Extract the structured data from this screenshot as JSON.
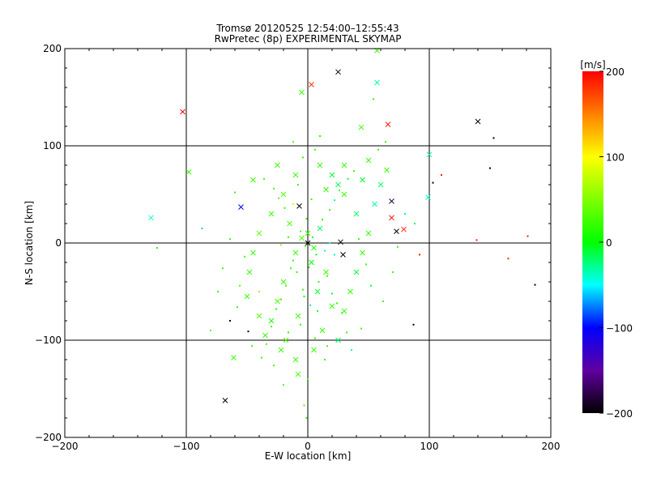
{
  "chart_data": {
    "type": "scatter",
    "title": "Tromsø 20120525 12:54:00–12:55:43",
    "subtitle": "RwPretec (8p) EXPERIMENTAL SKYMAP",
    "xlabel": "E-W location [km]",
    "ylabel": "N-S location [km]",
    "xlim": [
      -200,
      200
    ],
    "ylim": [
      -200,
      200
    ],
    "xticks": [
      "−200",
      "−100",
      "0",
      "100",
      "200"
    ],
    "yticks": [
      "−200",
      "−100",
      "0",
      "100",
      "200"
    ],
    "grid": true,
    "colorbar": {
      "label": "[m/s]",
      "range": [
        -200,
        200
      ],
      "ticks": [
        "200",
        "100",
        "0",
        "−100",
        "−200"
      ],
      "position": "right"
    },
    "points_format": [
      "x_km",
      "y_km",
      "velocity_ms",
      "marker"
    ],
    "points": [
      [
        -103,
        135,
        200,
        "x"
      ],
      [
        3,
        163,
        180,
        "x"
      ],
      [
        25,
        176,
        -200,
        "x"
      ],
      [
        57,
        165,
        -30,
        "x"
      ],
      [
        66,
        122,
        190,
        "x"
      ],
      [
        140,
        125,
        -200,
        "x"
      ],
      [
        153,
        108,
        -200,
        "d"
      ],
      [
        150,
        77,
        -200,
        "d"
      ],
      [
        110,
        70,
        190,
        "d"
      ],
      [
        69,
        43,
        -180,
        "x"
      ],
      [
        69,
        26,
        200,
        "x"
      ],
      [
        79,
        14,
        190,
        "x"
      ],
      [
        73,
        12,
        -200,
        "x"
      ],
      [
        99,
        47,
        -40,
        "x"
      ],
      [
        100,
        91,
        -30,
        "x"
      ],
      [
        103,
        62,
        -200,
        "d"
      ],
      [
        -129,
        26,
        -40,
        "x"
      ],
      [
        -98,
        73,
        20,
        "x"
      ],
      [
        -55,
        37,
        -100,
        "x"
      ],
      [
        -87,
        15,
        -60,
        "d"
      ],
      [
        -124,
        -5,
        10,
        "d"
      ],
      [
        139,
        3,
        190,
        "d"
      ],
      [
        165,
        -16,
        190,
        "d"
      ],
      [
        181,
        7,
        190,
        "d"
      ],
      [
        187,
        -43,
        -200,
        "d"
      ],
      [
        92,
        -12,
        190,
        "d"
      ],
      [
        87,
        -84,
        -200,
        "d"
      ],
      [
        -68,
        -162,
        -200,
        "x"
      ],
      [
        -61,
        -118,
        20,
        "x"
      ],
      [
        -64,
        -80,
        -200,
        "d"
      ],
      [
        -49,
        -91,
        -200,
        "d"
      ],
      [
        29,
        -12,
        -200,
        "x"
      ],
      [
        27,
        1,
        -200,
        "x"
      ],
      [
        -7,
        38,
        -200,
        "x"
      ],
      [
        0,
        0,
        -200,
        "x"
      ],
      [
        57,
        198,
        20,
        "x"
      ],
      [
        -5,
        155,
        20,
        "x"
      ],
      [
        44,
        119,
        20,
        "x"
      ],
      [
        -1,
        -180,
        20,
        "d"
      ],
      [
        -3,
        -167,
        30,
        "d"
      ],
      [
        0,
        10,
        20,
        "x"
      ],
      [
        -5,
        5,
        30,
        "x"
      ],
      [
        5,
        -5,
        10,
        "x"
      ],
      [
        10,
        15,
        -20,
        "x"
      ],
      [
        -10,
        -10,
        20,
        "x"
      ],
      [
        3,
        -20,
        0,
        "x"
      ],
      [
        -15,
        20,
        30,
        "x"
      ],
      [
        15,
        -30,
        20,
        "x"
      ],
      [
        -20,
        -40,
        20,
        "x"
      ],
      [
        8,
        -50,
        -10,
        "x"
      ],
      [
        -25,
        -60,
        30,
        "x"
      ],
      [
        20,
        -65,
        20,
        "x"
      ],
      [
        -8,
        -75,
        20,
        "x"
      ],
      [
        -30,
        -80,
        10,
        "x"
      ],
      [
        12,
        -90,
        20,
        "x"
      ],
      [
        -18,
        -100,
        30,
        "x"
      ],
      [
        -22,
        -110,
        20,
        "x"
      ],
      [
        -10,
        -120,
        20,
        "x"
      ],
      [
        -8,
        -135,
        30,
        "x"
      ],
      [
        5,
        -110,
        20,
        "x"
      ],
      [
        25,
        -100,
        -20,
        "x"
      ],
      [
        30,
        -70,
        20,
        "x"
      ],
      [
        35,
        -50,
        20,
        "x"
      ],
      [
        40,
        -30,
        -10,
        "x"
      ],
      [
        45,
        -10,
        20,
        "x"
      ],
      [
        50,
        10,
        20,
        "x"
      ],
      [
        40,
        30,
        -20,
        "x"
      ],
      [
        30,
        50,
        20,
        "x"
      ],
      [
        20,
        70,
        -10,
        "x"
      ],
      [
        10,
        80,
        20,
        "x"
      ],
      [
        -10,
        70,
        20,
        "x"
      ],
      [
        -20,
        50,
        30,
        "x"
      ],
      [
        -30,
        30,
        20,
        "x"
      ],
      [
        -40,
        10,
        40,
        "x"
      ],
      [
        -45,
        -10,
        20,
        "x"
      ],
      [
        -48,
        -30,
        20,
        "x"
      ],
      [
        -50,
        -55,
        20,
        "x"
      ],
      [
        -40,
        -75,
        30,
        "x"
      ],
      [
        -35,
        -95,
        20,
        "x"
      ],
      [
        60,
        60,
        -20,
        "x"
      ],
      [
        65,
        75,
        20,
        "x"
      ],
      [
        55,
        40,
        -30,
        "x"
      ],
      [
        45,
        65,
        -10,
        "x"
      ],
      [
        30,
        80,
        20,
        "x"
      ],
      [
        25,
        60,
        -20,
        "x"
      ],
      [
        15,
        55,
        20,
        "x"
      ],
      [
        50,
        85,
        20,
        "x"
      ],
      [
        -45,
        65,
        20,
        "x"
      ],
      [
        -25,
        80,
        20,
        "x"
      ],
      [
        -2,
        -3,
        20,
        "d"
      ],
      [
        4,
        6,
        10,
        "d"
      ],
      [
        -6,
        12,
        30,
        "d"
      ],
      [
        7,
        -12,
        -10,
        "d"
      ],
      [
        -12,
        -18,
        20,
        "d"
      ],
      [
        12,
        24,
        10,
        "d"
      ],
      [
        -14,
        -26,
        20,
        "d"
      ],
      [
        16,
        -34,
        20,
        "d"
      ],
      [
        -18,
        -44,
        30,
        "d"
      ],
      [
        20,
        -52,
        -20,
        "d"
      ],
      [
        -22,
        -58,
        20,
        "d"
      ],
      [
        24,
        -62,
        20,
        "d"
      ],
      [
        -26,
        -68,
        10,
        "d"
      ],
      [
        28,
        -72,
        20,
        "d"
      ],
      [
        -30,
        -86,
        20,
        "d"
      ],
      [
        32,
        -92,
        20,
        "d"
      ],
      [
        -34,
        -104,
        30,
        "d"
      ],
      [
        6,
        -98,
        20,
        "d"
      ],
      [
        -6,
        -84,
        20,
        "d"
      ],
      [
        2,
        -64,
        -30,
        "d"
      ],
      [
        -4,
        -48,
        20,
        "d"
      ],
      [
        9,
        -40,
        20,
        "d"
      ],
      [
        -9,
        -30,
        20,
        "d"
      ],
      [
        14,
        -8,
        -30,
        "d"
      ],
      [
        -16,
        6,
        20,
        "d"
      ],
      [
        18,
        34,
        20,
        "d"
      ],
      [
        -19,
        36,
        20,
        "d"
      ],
      [
        22,
        44,
        -20,
        "d"
      ],
      [
        -24,
        46,
        30,
        "d"
      ],
      [
        26,
        54,
        20,
        "d"
      ],
      [
        -28,
        56,
        20,
        "d"
      ],
      [
        33,
        66,
        -10,
        "d"
      ],
      [
        -36,
        66,
        20,
        "d"
      ],
      [
        38,
        74,
        20,
        "d"
      ],
      [
        -4,
        88,
        20,
        "d"
      ],
      [
        6,
        96,
        20,
        "d"
      ],
      [
        10,
        110,
        20,
        "d"
      ],
      [
        -12,
        104,
        30,
        "d"
      ],
      [
        42,
        4,
        20,
        "d"
      ],
      [
        48,
        -22,
        20,
        "d"
      ],
      [
        52,
        -44,
        -20,
        "d"
      ],
      [
        -52,
        -14,
        20,
        "d"
      ],
      [
        -56,
        -44,
        30,
        "d"
      ],
      [
        -58,
        -66,
        20,
        "d"
      ],
      [
        -46,
        -106,
        20,
        "d"
      ],
      [
        -38,
        -118,
        20,
        "d"
      ],
      [
        -28,
        -126,
        20,
        "d"
      ],
      [
        14,
        -120,
        20,
        "d"
      ],
      [
        36,
        -110,
        -30,
        "d"
      ],
      [
        44,
        -88,
        20,
        "d"
      ],
      [
        62,
        -60,
        20,
        "d"
      ],
      [
        70,
        -30,
        20,
        "d"
      ],
      [
        74,
        -4,
        20,
        "d"
      ],
      [
        80,
        30,
        -30,
        "d"
      ],
      [
        88,
        20,
        -20,
        "d"
      ],
      [
        58,
        96,
        20,
        "d"
      ],
      [
        64,
        104,
        20,
        "d"
      ],
      [
        54,
        148,
        20,
        "d"
      ],
      [
        -64,
        4,
        20,
        "d"
      ],
      [
        -70,
        -26,
        20,
        "d"
      ],
      [
        -74,
        -50,
        20,
        "d"
      ],
      [
        -80,
        -90,
        30,
        "d"
      ],
      [
        -60,
        52,
        20,
        "d"
      ],
      [
        -1,
        25,
        20,
        "d"
      ],
      [
        1,
        -25,
        20,
        "d"
      ],
      [
        -3,
        -55,
        10,
        "d"
      ],
      [
        3,
        45,
        20,
        "d"
      ],
      [
        -8,
        60,
        20,
        "d"
      ],
      [
        8,
        -70,
        20,
        "d"
      ],
      [
        -16,
        -92,
        20,
        "d"
      ],
      [
        16,
        -106,
        20,
        "d"
      ],
      [
        0,
        -140,
        20,
        "d"
      ],
      [
        -20,
        -146,
        30,
        "d"
      ],
      [
        22,
        -12,
        -40,
        "d"
      ],
      [
        -22,
        -2,
        60,
        "d"
      ],
      [
        -40,
        -50,
        60,
        "d"
      ],
      [
        -12,
        40,
        80,
        "d"
      ],
      [
        18,
        0,
        -50,
        "d"
      ]
    ]
  }
}
